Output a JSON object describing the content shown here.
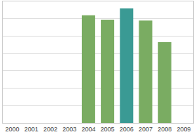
{
  "chart_data": {
    "type": "bar",
    "categories": [
      "2000",
      "2001",
      "2002",
      "2003",
      "2004",
      "2005",
      "2006",
      "2007",
      "2008",
      "2009"
    ],
    "values": [
      null,
      null,
      null,
      null,
      6.2,
      5.95,
      6.6,
      5.9,
      4.65,
      null
    ],
    "colors": [
      "#7aac62",
      "#7aac62",
      "#7aac62",
      "#7aac62",
      "#7aac62",
      "#7aac62",
      "#3a9a94",
      "#7aac62",
      "#7aac62",
      "#7aac62"
    ],
    "ylim": [
      0,
      7
    ],
    "yticks": [
      0,
      1,
      2,
      3,
      4,
      5,
      6,
      7
    ],
    "grid": true,
    "tick_labels": "x"
  }
}
